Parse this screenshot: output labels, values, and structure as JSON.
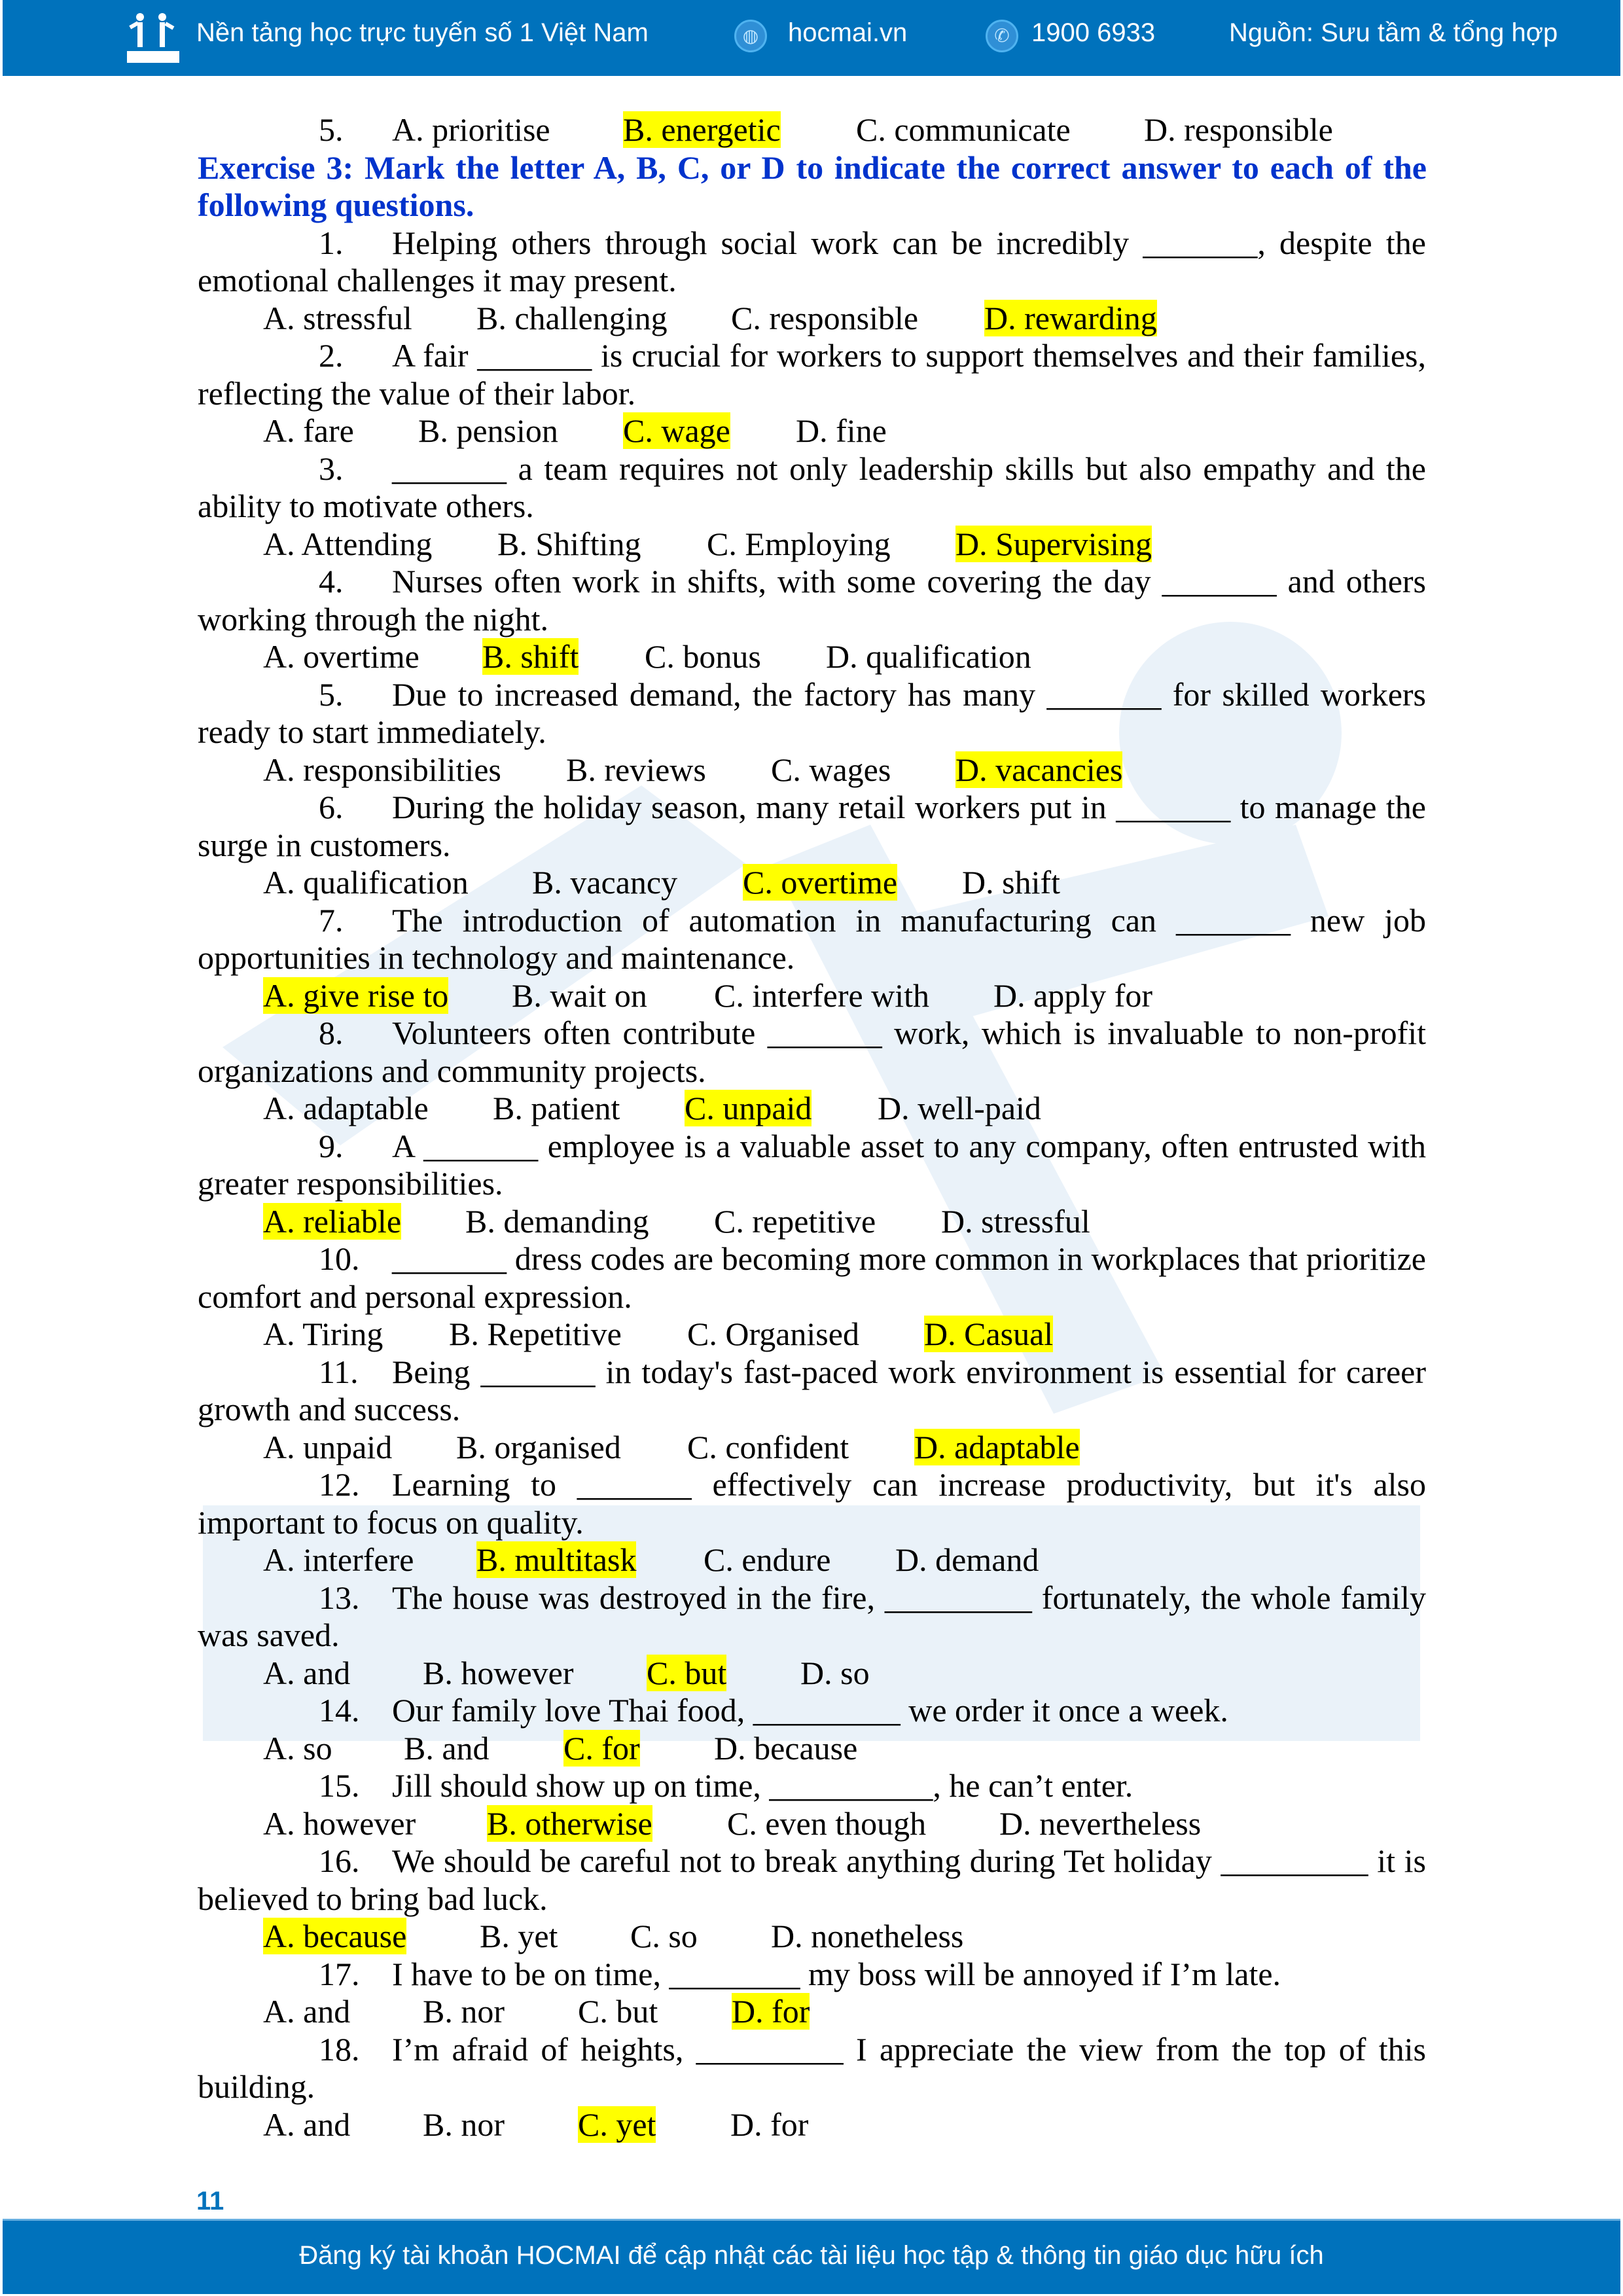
{
  "header": {
    "tagline": "Nền tảng học trực tuyến số 1 Việt Nam",
    "website": "hocmai.vn",
    "phone": "1900 6933",
    "source": "Nguồn: Sưu tầm & tổng hợp",
    "logo_text": "HOCMAI",
    "globe_icon": "globe-icon",
    "phone_icon": "phone-icon"
  },
  "prev_question": {
    "number": "5.",
    "options": [
      "A. prioritise",
      "B. energetic",
      "C. communicate",
      "D. responsible"
    ],
    "answer": 1
  },
  "exercise": {
    "heading": "Exercise 3: Mark the letter A, B, C, or D to indicate the correct answer to each of the following questions.",
    "questions": [
      {
        "number": "1.",
        "stem": [
          "Helping others through social work can be incredibly _______, despite the",
          "emotional challenges it may present."
        ],
        "options": [
          "A. stressful",
          "B. challenging",
          "C. responsible",
          "D. rewarding"
        ],
        "answer": 3
      },
      {
        "number": "2.",
        "stem": [
          "A fair _______ is crucial for workers to support themselves and their families,",
          "reflecting the value of their labor."
        ],
        "options": [
          "A. fare",
          "B. pension",
          "C. wage",
          "D. fine"
        ],
        "answer": 2
      },
      {
        "number": "3.",
        "stem": [
          "_______ a team requires not only leadership skills but also empathy and the",
          "ability to motivate others."
        ],
        "options": [
          "A. Attending",
          "B. Shifting",
          "C. Employing",
          "D. Supervising"
        ],
        "answer": 3
      },
      {
        "number": "4.",
        "stem": [
          "Nurses often work in shifts, with some covering the day _______ and others",
          "working through the night."
        ],
        "options": [
          "A. overtime",
          "B. shift",
          "C. bonus",
          "D. qualification"
        ],
        "answer": 1
      },
      {
        "number": "5.",
        "stem": [
          "Due to increased demand, the factory has many _______ for skilled workers",
          "ready to start immediately."
        ],
        "options": [
          "A. responsibilities",
          "B. reviews",
          "C. wages",
          "D. vacancies"
        ],
        "answer": 3
      },
      {
        "number": "6.",
        "stem": [
          "During the holiday season, many retail workers put in _______ to manage the",
          "surge in customers."
        ],
        "options": [
          "A. qualification",
          "B. vacancy",
          "C. overtime",
          "D. shift"
        ],
        "answer": 2
      },
      {
        "number": "7.",
        "stem": [
          "The introduction of automation in manufacturing can _______ new job",
          "opportunities in technology and maintenance."
        ],
        "options": [
          "A. give rise to",
          "B. wait on",
          "C. interfere with",
          "D. apply for"
        ],
        "answer": 0
      },
      {
        "number": "8.",
        "stem": [
          "Volunteers often contribute _______ work, which is invaluable to non-profit",
          "organizations and community projects."
        ],
        "options": [
          "A. adaptable",
          "B. patient",
          "C. unpaid",
          "D. well-paid"
        ],
        "answer": 2
      },
      {
        "number": "9.",
        "stem": [
          "A _______ employee is a valuable asset to any company, often entrusted with",
          "greater responsibilities."
        ],
        "options": [
          "A. reliable",
          "B. demanding",
          "C. repetitive",
          "D. stressful"
        ],
        "answer": 0
      },
      {
        "number": "10.",
        "stem": [
          "_______ dress codes are becoming more common in workplaces that prioritize",
          "comfort and personal expression."
        ],
        "options": [
          "A. Tiring",
          "B. Repetitive",
          "C. Organised",
          "D. Casual"
        ],
        "answer": 3
      },
      {
        "number": "11.",
        "stem": [
          "Being _______ in today's fast-paced work environment is essential for career",
          "growth and success."
        ],
        "options": [
          "A. unpaid",
          "B. organised",
          "C. confident",
          "D. adaptable"
        ],
        "answer": 3
      },
      {
        "number": "12.",
        "stem": [
          "Learning to _______ effectively can increase productivity, but it's also",
          "important to focus on quality."
        ],
        "options": [
          "A. interfere",
          "B. multitask",
          "C. endure",
          "D. demand"
        ],
        "answer": 1
      },
      {
        "number": "13.",
        "stem": [
          "The house was destroyed in the fire, _________ fortunately, the whole family",
          "was saved."
        ],
        "options": [
          "A. and",
          "B. however",
          "C. but",
          "D. so"
        ],
        "answer": 2
      },
      {
        "number": "14.",
        "stem": [
          "Our family love Thai food, _________ we order it once a week."
        ],
        "options": [
          "A. so",
          "B. and",
          "C. for",
          "D. because"
        ],
        "answer": 2
      },
      {
        "number": "15.",
        "stem": [
          "Jill should show up on time, __________, he can’t enter."
        ],
        "options": [
          "A. however",
          "B. otherwise",
          "C. even though",
          "D. nevertheless"
        ],
        "answer": 1
      },
      {
        "number": "16.",
        "stem": [
          "We should be careful not to break anything during Tet holiday _________ it is",
          "believed to bring bad luck."
        ],
        "options": [
          "A. because",
          "B. yet",
          "C. so",
          "D. nonetheless"
        ],
        "answer": 0
      },
      {
        "number": "17.",
        "stem": [
          "I have to be on time, ________ my boss will be annoyed if I’m late."
        ],
        "options": [
          "A. and",
          "B. nor",
          "C. but",
          "D. for"
        ],
        "answer": 3
      },
      {
        "number": "18.",
        "stem": [
          "I’m afraid of heights, _________ I appreciate the view from the top of this",
          "building."
        ],
        "options": [
          "A. and",
          "B. nor",
          "C. yet",
          "D. for"
        ],
        "answer": 2
      }
    ]
  },
  "page_number": "11",
  "footer": {
    "text": "Đăng ký tài khoản HOCMAI để cập nhật các tài liệu học tập & thông tin giáo dục hữu ích"
  },
  "colors": {
    "brand_blue": "#0072bc",
    "heading_blue": "#0033cc",
    "highlight": "#ffff00",
    "watermark": "#e6f0f8"
  }
}
